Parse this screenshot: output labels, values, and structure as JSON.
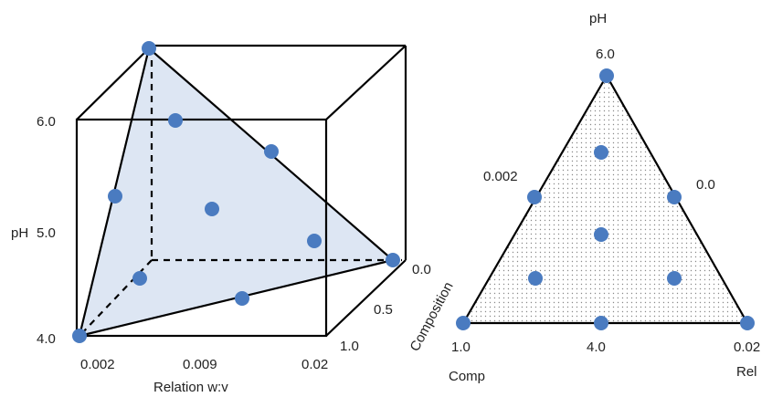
{
  "colors": {
    "point": "#4a7bc0",
    "tetra_fill": "#dde6f3",
    "edge": "#000000",
    "triangle_dots": "#8a8a8a"
  },
  "cube": {
    "y_axis_title": "pH",
    "y_ticks": [
      "6.0",
      "5.0",
      "4.0"
    ],
    "x_axis_title": "Relation w:v",
    "x_ticks": [
      "0.002",
      "0.009",
      "0.02"
    ],
    "z_axis_title": "Composition",
    "z_ticks": [
      "0.0",
      "0.5",
      "1.0"
    ]
  },
  "triangle": {
    "top_title": "pH",
    "top_value": "6.0",
    "left_mid_value": "0.002",
    "right_mid_value": "0.0",
    "bottom_left_value": "1.0",
    "bottom_mid_value": "4.0",
    "bottom_right_value": "0.02",
    "bottom_left_title": "Comp",
    "bottom_right_title": "Rel"
  }
}
